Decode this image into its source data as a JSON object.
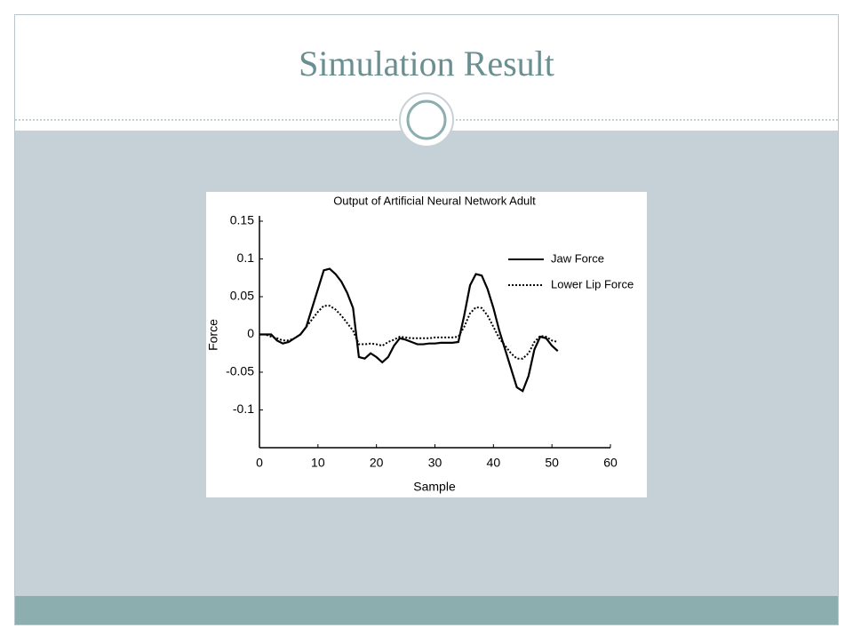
{
  "slide": {
    "title": "Simulation Result"
  },
  "chart_data": {
    "type": "line",
    "title": "Output of Artificial Neural Network Adult",
    "xlabel": "Sample",
    "ylabel": "Force",
    "x": [
      0,
      1,
      2,
      3,
      4,
      5,
      6,
      7,
      8,
      9,
      10,
      11,
      12,
      13,
      14,
      15,
      16,
      17,
      18,
      19,
      20,
      21,
      22,
      23,
      24,
      25,
      26,
      27,
      28,
      29,
      30,
      31,
      32,
      33,
      34,
      35,
      36,
      37,
      38,
      39,
      40,
      41,
      42,
      43,
      44,
      45,
      46,
      47,
      48,
      49,
      50,
      51
    ],
    "series": [
      {
        "name": "Jaw Force",
        "color": "#000000",
        "style": "solid",
        "values": [
          0,
          0,
          0,
          -0.008,
          -0.012,
          -0.01,
          -0.005,
          0,
          0.01,
          0.035,
          0.06,
          0.085,
          0.087,
          0.08,
          0.07,
          0.055,
          0.035,
          -0.03,
          -0.032,
          -0.025,
          -0.03,
          -0.037,
          -0.03,
          -0.015,
          -0.005,
          -0.007,
          -0.01,
          -0.013,
          -0.013,
          -0.012,
          -0.012,
          -0.011,
          -0.011,
          -0.011,
          -0.01,
          0.025,
          0.065,
          0.08,
          0.078,
          0.06,
          0.035,
          0.005,
          -0.02,
          -0.045,
          -0.07,
          -0.075,
          -0.055,
          -0.02,
          -0.003,
          -0.005,
          -0.015,
          -0.022
        ]
      },
      {
        "name": "Lower Lip Force",
        "color": "#000000",
        "style": "dotted",
        "values": [
          0,
          0,
          -0.003,
          -0.005,
          -0.008,
          -0.008,
          -0.005,
          0,
          0.01,
          0.02,
          0.03,
          0.038,
          0.038,
          0.033,
          0.025,
          0.015,
          0.005,
          -0.013,
          -0.013,
          -0.012,
          -0.013,
          -0.015,
          -0.01,
          -0.007,
          -0.003,
          -0.004,
          -0.005,
          -0.005,
          -0.005,
          -0.005,
          -0.004,
          -0.004,
          -0.004,
          -0.004,
          -0.003,
          0.01,
          0.028,
          0.036,
          0.035,
          0.025,
          0.01,
          -0.005,
          -0.015,
          -0.025,
          -0.032,
          -0.032,
          -0.025,
          -0.01,
          -0.002,
          -0.003,
          -0.008,
          -0.01
        ]
      }
    ],
    "xlim": [
      0,
      60
    ],
    "xticks": [
      0,
      10,
      20,
      30,
      40,
      50,
      60
    ],
    "ylim": [
      -0.15,
      0.15
    ],
    "yticks": [
      -0.1,
      -0.05,
      0,
      0.05,
      0.1,
      0.15
    ],
    "legend": "upper right"
  }
}
